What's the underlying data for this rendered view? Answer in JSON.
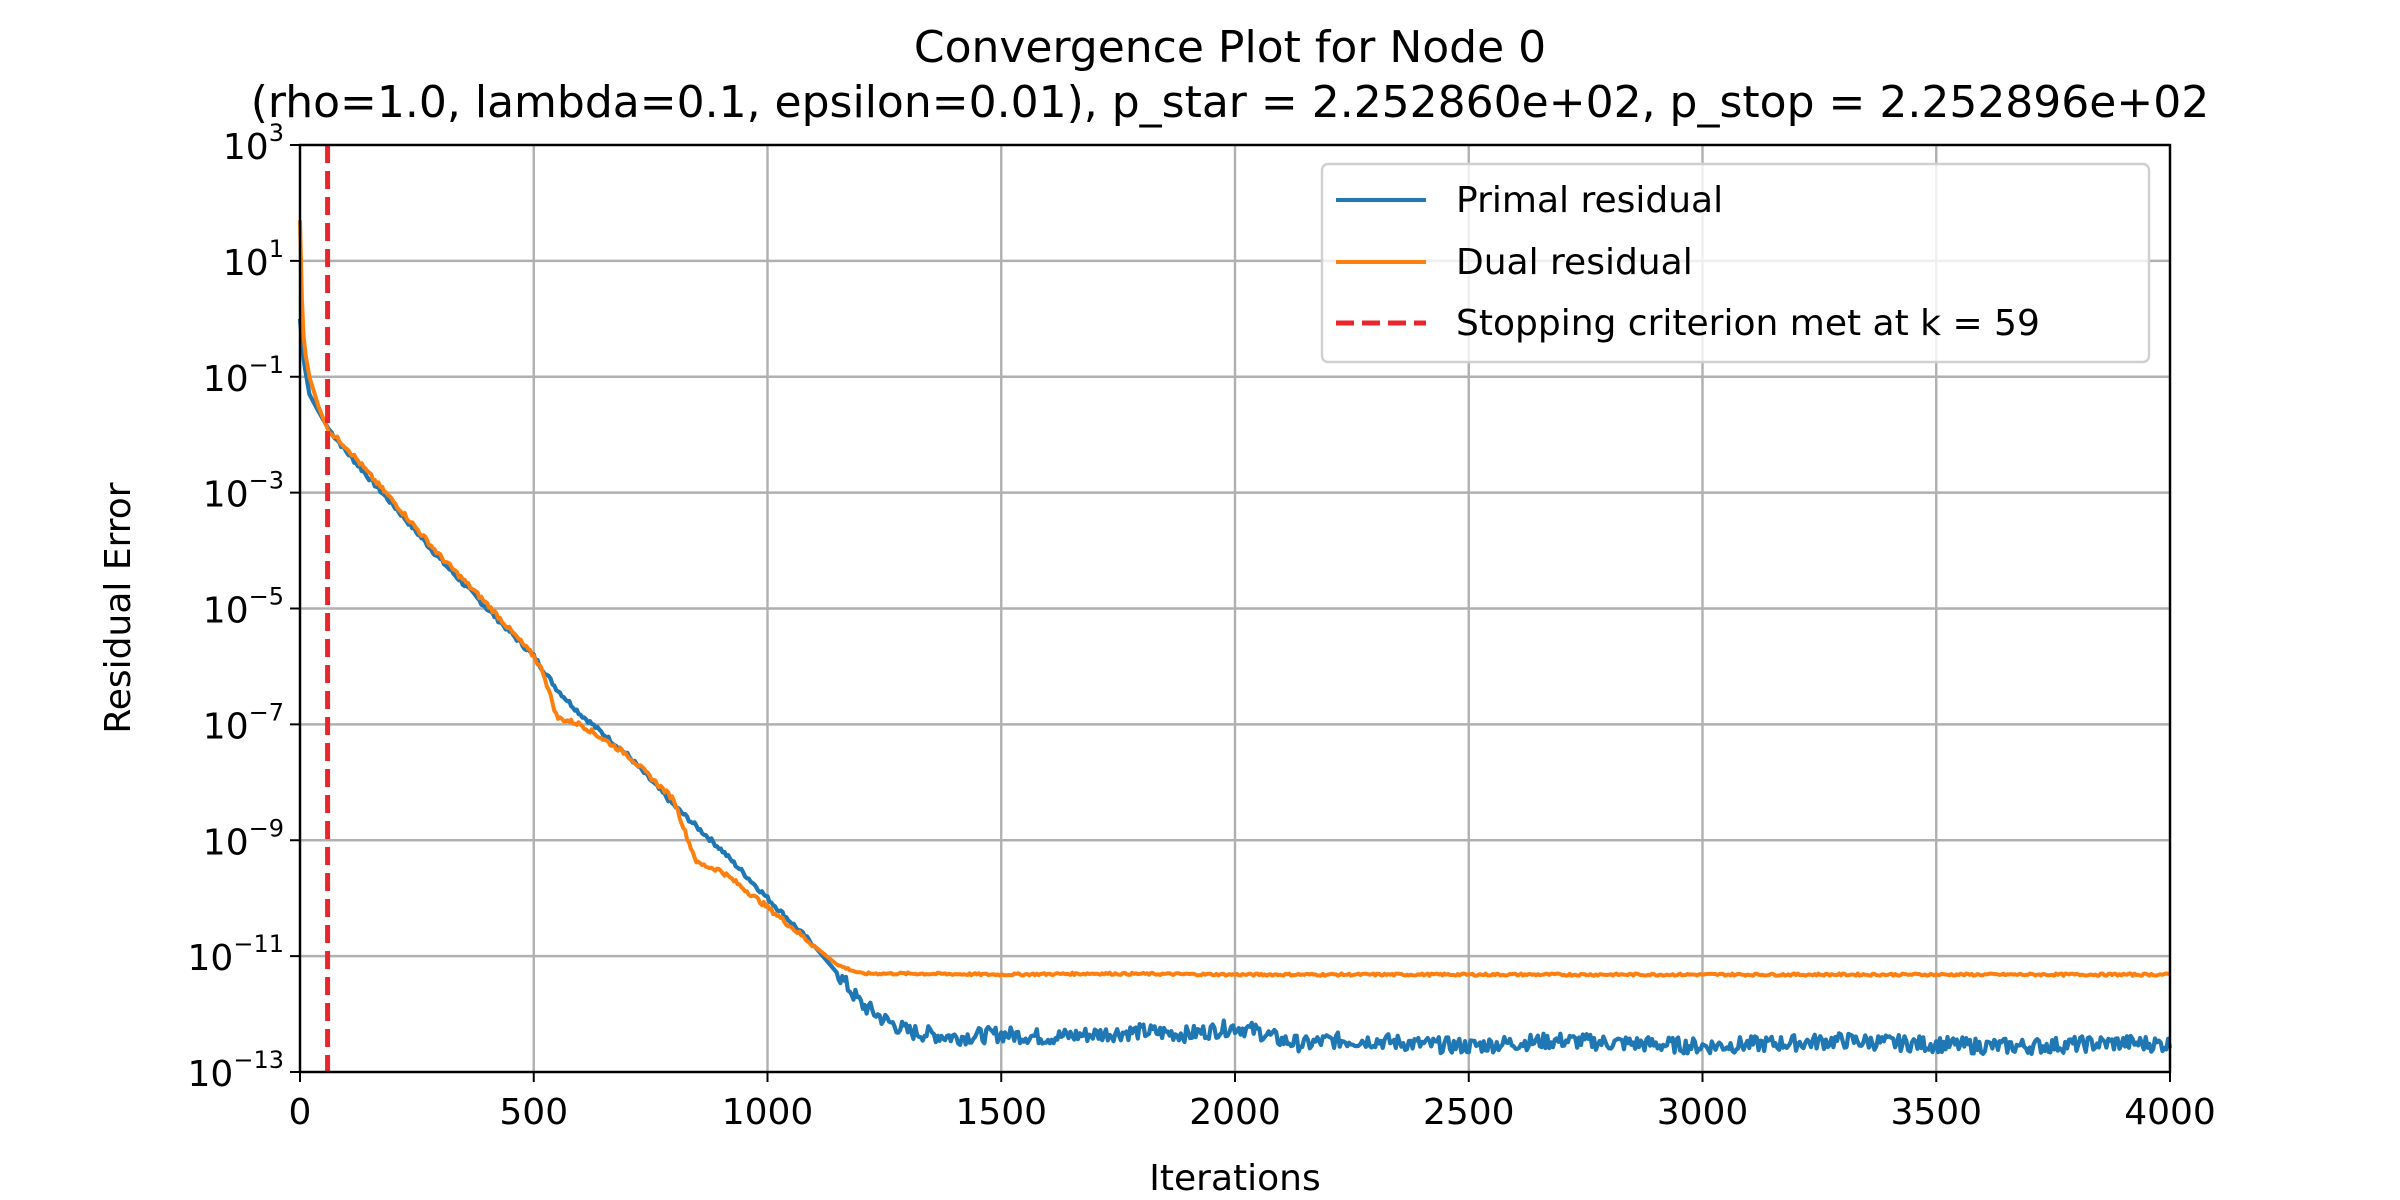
{
  "chart_data": {
    "type": "line",
    "title": "Convergence Plot for Node 0",
    "subtitle": "(rho=1.0, lambda=0.1, epsilon=0.01), p_star = 2.252860e+02, p_stop = 2.252896e+02",
    "xlabel": "Iterations",
    "ylabel": "Residual Error",
    "xlim": [
      0,
      4000
    ],
    "ylim": [
      1e-13,
      1000
    ],
    "yscale": "log",
    "grid": true,
    "legend_position": "top-right",
    "x_ticks": [
      {
        "value": 0,
        "label": "0"
      },
      {
        "value": 500,
        "label": "500"
      },
      {
        "value": 1000,
        "label": "1000"
      },
      {
        "value": 1500,
        "label": "1500"
      },
      {
        "value": 2000,
        "label": "2000"
      },
      {
        "value": 2500,
        "label": "2500"
      },
      {
        "value": 3000,
        "label": "3000"
      },
      {
        "value": 3500,
        "label": "3500"
      },
      {
        "value": 4000,
        "label": "4000"
      }
    ],
    "y_ticks": [
      {
        "exp": 3,
        "base": "10",
        "sup": "3"
      },
      {
        "exp": 1,
        "base": "10",
        "sup": "1"
      },
      {
        "exp": -1,
        "base": "10",
        "sup": "−1"
      },
      {
        "exp": -3,
        "base": "10",
        "sup": "−3"
      },
      {
        "exp": -5,
        "base": "10",
        "sup": "−5"
      },
      {
        "exp": -7,
        "base": "10",
        "sup": "−7"
      },
      {
        "exp": -9,
        "base": "10",
        "sup": "−9"
      },
      {
        "exp": -11,
        "base": "10",
        "sup": "−11"
      },
      {
        "exp": -13,
        "base": "10",
        "sup": "−13"
      }
    ],
    "series": [
      {
        "name": "Primal residual",
        "color": "#1f77b4",
        "x": [
          0,
          5,
          10,
          20,
          40,
          60,
          100,
          150,
          200,
          300,
          400,
          500,
          550,
          600,
          700,
          800,
          900,
          1000,
          1100,
          1150,
          1200,
          1250,
          1300,
          1400,
          1500,
          1600,
          1700,
          1800,
          1900,
          2000,
          2050,
          2100,
          2150,
          2200,
          2300,
          2400,
          2500,
          2600,
          2700,
          2800,
          2900,
          3000,
          3100,
          3200,
          3300,
          3400,
          3500,
          3600,
          3700,
          3800,
          3900,
          4000
        ],
        "y": [
          1,
          0.3,
          0.15,
          0.05,
          0.025,
          0.013,
          0.005,
          0.0017,
          0.0006,
          7e-05,
          1e-05,
          1.5e-06,
          4e-07,
          1.5e-07,
          3e-08,
          4e-09,
          7e-10,
          1e-10,
          1.5e-11,
          5e-12,
          1.5e-12,
          8e-13,
          5e-13,
          4e-13,
          4.5e-13,
          4e-13,
          4.5e-13,
          5e-13,
          4.5e-13,
          6e-13,
          5e-13,
          3.5e-13,
          3e-13,
          3.5e-13,
          3.5e-13,
          3e-13,
          2.8e-13,
          3.2e-13,
          3.5e-13,
          3.2e-13,
          3e-13,
          2.8e-13,
          3e-13,
          3.2e-13,
          3.5e-13,
          3.2e-13,
          3e-13,
          2.8e-13,
          2.8e-13,
          3e-13,
          3.2e-13,
          3e-13
        ]
      },
      {
        "name": "Dual residual",
        "color": "#ff7f0e",
        "x": [
          0,
          5,
          10,
          20,
          40,
          60,
          100,
          150,
          200,
          300,
          400,
          500,
          520,
          550,
          600,
          700,
          800,
          830,
          850,
          900,
          1000,
          1100,
          1150,
          1200,
          1300,
          1500,
          1700,
          2000,
          2500,
          3000,
          3500,
          4000
        ],
        "y": [
          50,
          1,
          0.3,
          0.1,
          0.03,
          0.012,
          0.006,
          0.002,
          0.0007,
          8e-05,
          1.2e-05,
          1.5e-06,
          8e-07,
          1.3e-07,
          1e-07,
          3e-08,
          5e-09,
          1e-09,
          4e-10,
          3e-10,
          7e-11,
          1.5e-11,
          7e-12,
          5e-12,
          5e-12,
          4.8e-12,
          5e-12,
          4.8e-12,
          4.8e-12,
          4.8e-12,
          4.8e-12,
          4.8e-12
        ]
      }
    ],
    "vline": {
      "x": 59,
      "color": "#e8262c",
      "label": "Stopping criterion met at k = 59"
    }
  }
}
